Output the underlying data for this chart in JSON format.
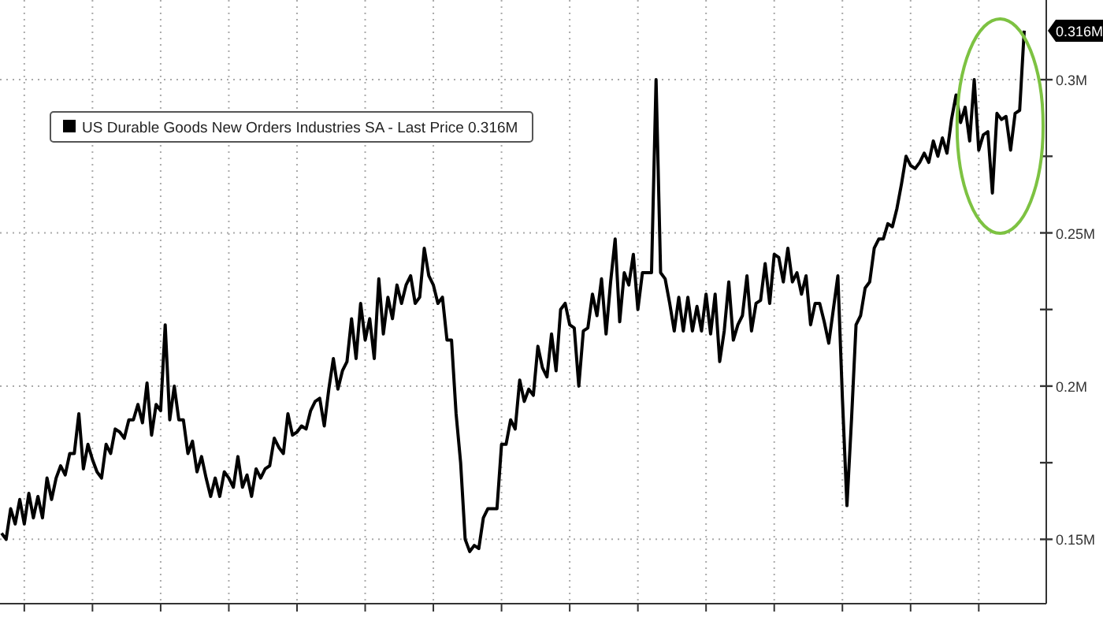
{
  "chart_data": {
    "type": "line",
    "legend": "top left",
    "grid": true,
    "ylim": [
      0.129,
      0.326
    ],
    "yticks": [
      {
        "value": 0.15,
        "label": "0.15M"
      },
      {
        "value": 0.175,
        "label": null
      },
      {
        "value": 0.2,
        "label": "0.2M"
      },
      {
        "value": 0.225,
        "label": null
      },
      {
        "value": 0.25,
        "label": "0.25M"
      },
      {
        "value": 0.275,
        "label": null
      },
      {
        "value": 0.3,
        "label": "0.3M"
      }
    ],
    "annotations": [
      "0.316M"
    ],
    "categories": [
      null,
      null,
      null,
      null,
      null,
      null,
      null,
      null,
      null,
      null,
      null,
      null,
      null,
      null,
      null,
      null,
      null,
      null,
      null,
      null,
      null,
      null,
      null,
      null,
      null,
      null,
      null,
      null,
      null,
      null,
      null,
      null,
      null,
      null,
      null,
      null,
      null,
      null,
      null,
      null,
      null,
      null,
      null,
      null,
      null,
      null,
      null,
      null,
      null,
      null,
      null,
      null,
      null,
      null,
      null,
      null,
      null,
      null,
      null,
      null,
      null,
      null,
      null,
      null,
      null,
      null,
      null,
      null,
      null,
      null,
      null,
      null,
      null,
      null,
      null,
      null,
      null,
      null,
      null,
      null,
      null,
      null,
      null,
      null,
      null,
      null,
      null,
      null,
      null,
      null,
      null,
      null,
      null,
      null,
      null,
      null,
      null,
      null,
      null,
      null,
      null,
      null,
      null,
      null,
      null,
      null,
      null,
      null,
      null,
      null,
      null,
      null,
      null,
      null,
      null,
      null,
      null,
      null,
      null,
      null,
      null,
      null,
      null,
      null,
      null,
      null,
      null,
      null,
      null,
      null,
      null,
      null,
      null,
      null,
      null,
      null,
      null,
      null,
      null,
      null,
      null,
      null,
      null,
      null,
      null,
      null,
      null,
      null,
      null,
      null,
      null,
      null,
      null,
      null,
      null,
      null,
      null,
      null,
      null,
      null,
      null,
      null,
      null,
      null,
      null,
      null,
      null,
      null,
      null,
      null,
      null,
      null,
      null,
      null,
      null,
      null,
      null,
      null,
      null,
      null,
      null,
      null,
      null,
      null,
      null,
      null,
      null,
      null,
      null,
      null,
      null,
      null,
      null,
      null,
      null,
      null,
      null,
      null,
      null,
      null,
      null,
      null,
      null,
      null,
      null,
      null,
      null,
      null,
      null,
      null,
      null,
      null,
      null,
      null,
      null,
      null,
      null,
      null,
      null,
      null,
      null,
      null,
      null,
      null,
      null,
      null
    ],
    "series": [
      {
        "name": "US Durable Goods New Orders Industries SA - Last Price 0.316M",
        "color": "#000000",
        "values": [
          0.152,
          0.15,
          0.16,
          0.155,
          0.163,
          0.155,
          0.165,
          0.157,
          0.164,
          0.157,
          0.17,
          0.163,
          0.17,
          0.174,
          0.171,
          0.178,
          0.178,
          0.191,
          0.173,
          0.181,
          0.176,
          0.172,
          0.17,
          0.181,
          0.178,
          0.186,
          0.185,
          0.183,
          0.189,
          0.189,
          0.194,
          0.188,
          0.201,
          0.184,
          0.194,
          0.192,
          0.22,
          0.189,
          0.2,
          0.189,
          0.189,
          0.178,
          0.182,
          0.172,
          0.177,
          0.17,
          0.164,
          0.17,
          0.164,
          0.172,
          0.17,
          0.167,
          0.177,
          0.167,
          0.171,
          0.164,
          0.173,
          0.17,
          0.173,
          0.174,
          0.183,
          0.18,
          0.178,
          0.191,
          0.184,
          0.185,
          0.187,
          0.186,
          0.192,
          0.195,
          0.196,
          0.187,
          0.199,
          0.209,
          0.199,
          0.205,
          0.208,
          0.222,
          0.209,
          0.227,
          0.215,
          0.222,
          0.209,
          0.235,
          0.217,
          0.229,
          0.222,
          0.233,
          0.227,
          0.233,
          0.236,
          0.227,
          0.229,
          0.245,
          0.236,
          0.233,
          0.227,
          0.229,
          0.215,
          0.215,
          0.191,
          0.175,
          0.15,
          0.146,
          0.148,
          0.147,
          0.157,
          0.16,
          0.16,
          0.16,
          0.181,
          0.181,
          0.189,
          0.186,
          0.202,
          0.195,
          0.199,
          0.197,
          0.213,
          0.206,
          0.203,
          0.217,
          0.205,
          0.225,
          0.227,
          0.22,
          0.219,
          0.2,
          0.218,
          0.219,
          0.23,
          0.223,
          0.235,
          0.217,
          0.234,
          0.248,
          0.221,
          0.237,
          0.233,
          0.243,
          0.225,
          0.237,
          0.237,
          0.237,
          0.3,
          0.237,
          0.235,
          0.227,
          0.218,
          0.229,
          0.218,
          0.229,
          0.218,
          0.226,
          0.218,
          0.23,
          0.217,
          0.23,
          0.208,
          0.218,
          0.234,
          0.215,
          0.22,
          0.223,
          0.236,
          0.218,
          0.227,
          0.228,
          0.24,
          0.227,
          0.243,
          0.242,
          0.234,
          0.245,
          0.234,
          0.237,
          0.23,
          0.236,
          0.22,
          0.227,
          0.227,
          0.221,
          0.214,
          0.225,
          0.236,
          0.196,
          0.161,
          0.189,
          0.22,
          0.223,
          0.232,
          0.234,
          0.245,
          0.248,
          0.248,
          0.253,
          0.252,
          0.258,
          0.266,
          0.275,
          0.272,
          0.271,
          0.273,
          0.276,
          0.273,
          0.28,
          0.275,
          0.281,
          0.276,
          0.287,
          0.295,
          0.286,
          0.291,
          0.28,
          0.3,
          0.277,
          0.282,
          0.283,
          0.263,
          0.289,
          0.287,
          0.288,
          0.277,
          0.289,
          0.29,
          0.316
        ]
      }
    ]
  }
}
